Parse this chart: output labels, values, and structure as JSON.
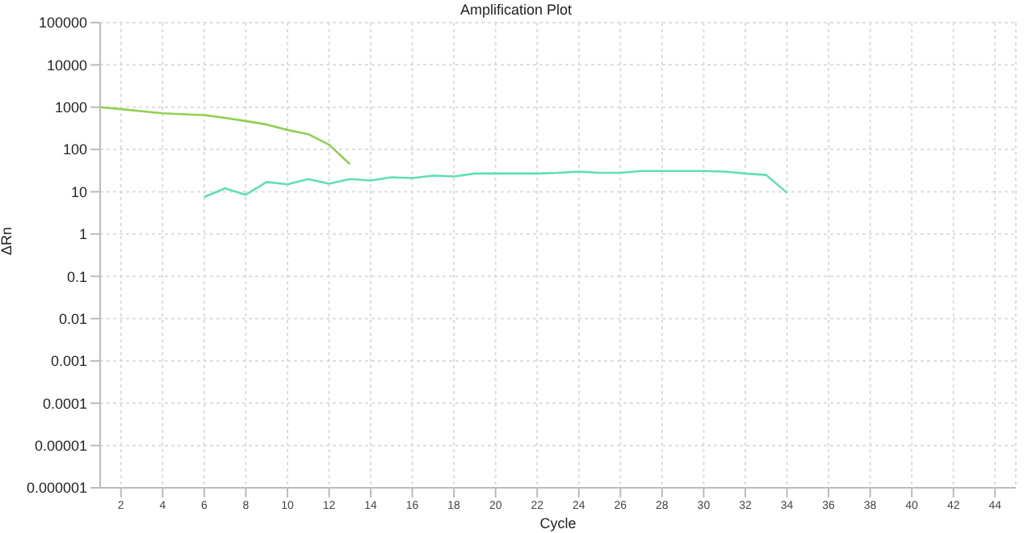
{
  "chart_data": {
    "type": "line",
    "title": "Amplification Plot",
    "xlabel": "Cycle",
    "ylabel": "ΔRn",
    "log": "y",
    "grid": true,
    "marker": "none",
    "xlim": [
      1,
      45
    ],
    "xticks": [
      2,
      4,
      6,
      8,
      10,
      12,
      14,
      16,
      18,
      20,
      22,
      24,
      26,
      28,
      30,
      32,
      34,
      36,
      38,
      40,
      42,
      44
    ],
    "ylim": [
      1e-06,
      100000
    ],
    "yticks": [
      {
        "value": 1e-06,
        "label": "0.000001"
      },
      {
        "value": 1e-05,
        "label": "0.00001"
      },
      0.0001,
      0.001,
      0.01,
      0.1,
      1,
      10,
      100,
      1000,
      10000,
      100000
    ],
    "series": [
      {
        "color": "#8fd14f",
        "x": [
          1,
          2,
          3,
          4,
          5,
          6,
          7,
          8,
          9,
          10,
          11,
          12,
          13
        ],
        "values": [
          1000,
          900,
          800,
          720,
          680,
          650,
          560,
          470,
          390,
          290,
          230,
          130,
          45
        ]
      },
      {
        "color": "#5fe0b0",
        "x": [
          6,
          7,
          8,
          9,
          10,
          11,
          12,
          13,
          14,
          15,
          16,
          17,
          18,
          19,
          20,
          21,
          22,
          23,
          24,
          25,
          26,
          27,
          28,
          29,
          30,
          31,
          32,
          33,
          34
        ],
        "values": [
          7.5,
          12,
          8.5,
          17,
          15,
          20,
          15.5,
          20,
          18.5,
          22,
          21,
          24,
          23,
          27,
          27,
          27,
          27,
          28,
          30,
          28,
          28,
          31,
          31,
          31,
          31,
          30,
          27,
          25,
          9.5
        ]
      }
    ]
  }
}
